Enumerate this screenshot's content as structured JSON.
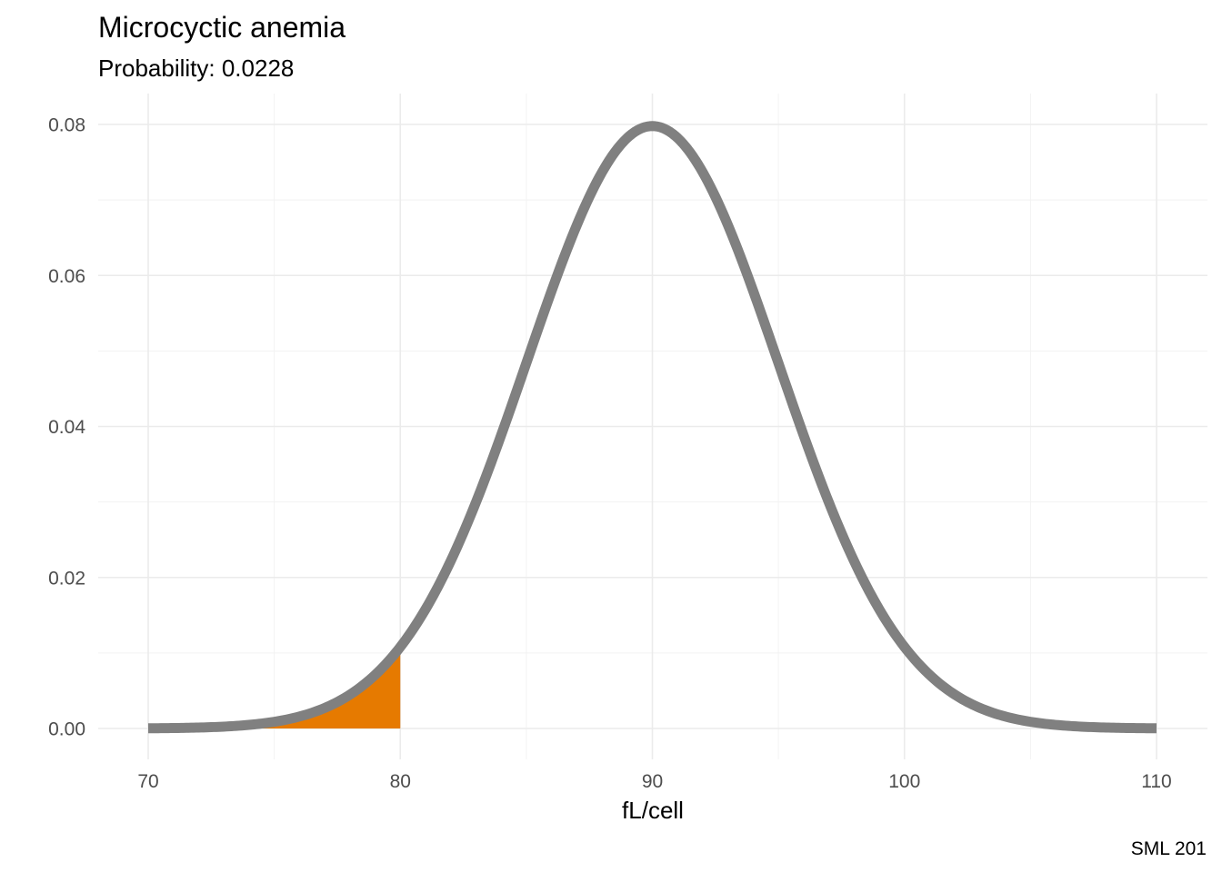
{
  "chart_data": {
    "type": "area",
    "title": "Microcyctic anemia",
    "subtitle": "Probability: 0.0228",
    "xlabel": "fL/cell",
    "ylabel": "",
    "caption": "SML 201",
    "distribution": "normal",
    "mean": 90,
    "sd": 5,
    "xlim": [
      70,
      110
    ],
    "ylim": [
      0,
      0.08
    ],
    "x_ticks": [
      70,
      80,
      90,
      100,
      110
    ],
    "x_tick_labels": [
      "70",
      "80",
      "90",
      "100",
      "110"
    ],
    "y_ticks": [
      0,
      0.02,
      0.04,
      0.06,
      0.08
    ],
    "y_tick_labels": [
      "0.00",
      "0.02",
      "0.04",
      "0.06",
      "0.08"
    ],
    "shaded_region": [
      70,
      80
    ],
    "probability": 0.0228,
    "grid": true,
    "legend": "none",
    "colors": {
      "curve": "#808080",
      "shade": "#e67a00",
      "grid": "#ebebeb"
    }
  }
}
